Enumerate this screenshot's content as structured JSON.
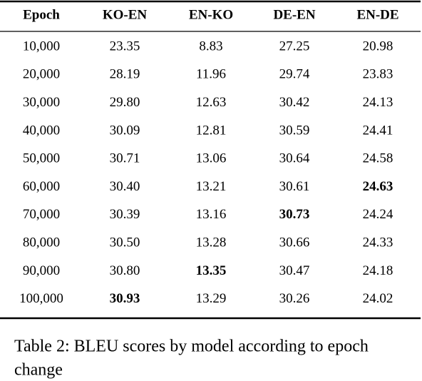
{
  "table": {
    "header": [
      "Epoch",
      "KO-EN",
      "EN-KO",
      "DE-EN",
      "EN-DE"
    ],
    "rows": [
      [
        "10,000",
        "23.35",
        "8.83",
        "27.25",
        "20.98"
      ],
      [
        "20,000",
        "28.19",
        "11.96",
        "29.74",
        "23.83"
      ],
      [
        "30,000",
        "29.80",
        "12.63",
        "30.42",
        "24.13"
      ],
      [
        "40,000",
        "30.09",
        "12.81",
        "30.59",
        "24.41"
      ],
      [
        "50,000",
        "30.71",
        "13.06",
        "30.64",
        "24.58"
      ],
      [
        "60,000",
        "30.40",
        "13.21",
        "30.61",
        {
          "text": "24.63",
          "bold": true
        }
      ],
      [
        "70,000",
        "30.39",
        "13.16",
        {
          "text": "30.73",
          "bold": true
        },
        "24.24"
      ],
      [
        "80,000",
        "30.50",
        "13.28",
        "30.66",
        "24.33"
      ],
      [
        "90,000",
        "30.80",
        {
          "text": "13.35",
          "bold": true
        },
        "30.47",
        "24.18"
      ],
      [
        "100,000",
        {
          "text": "30.93",
          "bold": true
        },
        "13.29",
        "30.26",
        "24.02"
      ]
    ]
  },
  "caption": [
    "Table 2: BLEU scores by model according to epoch",
    "change"
  ]
}
